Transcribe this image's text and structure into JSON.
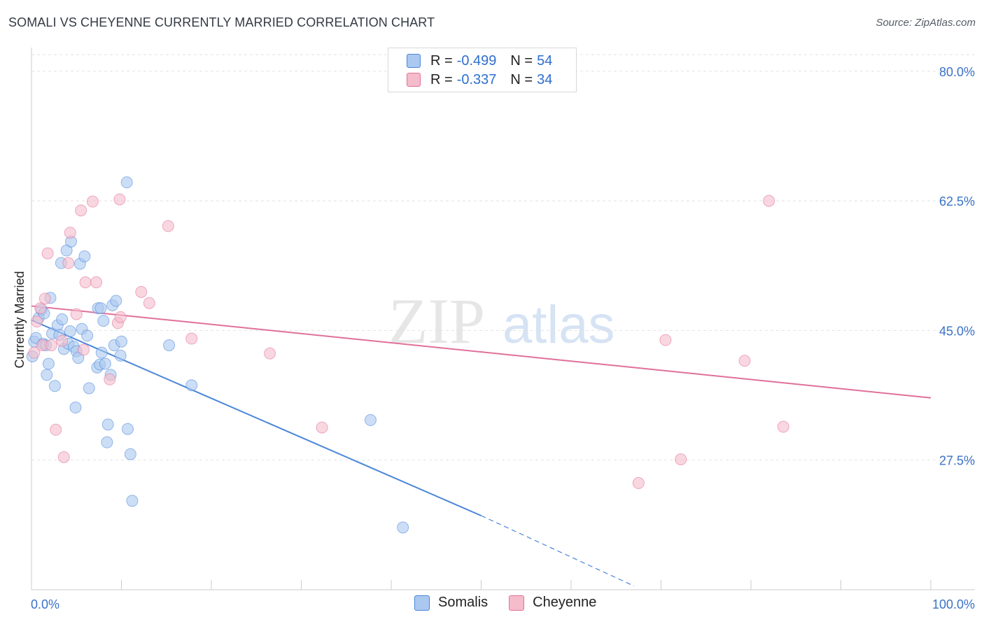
{
  "header": {
    "title": "SOMALI VS CHEYENNE CURRENTLY MARRIED CORRELATION CHART",
    "source": "Source: ZipAtlas.com"
  },
  "watermark": {
    "zip": "ZIP",
    "atlas": "atlas"
  },
  "legend": {
    "rows": [
      {
        "r_label": "R =",
        "r_value": "-0.499",
        "n_label": "N =",
        "n_value": "54",
        "color": "#aac8f0"
      },
      {
        "r_label": "R =",
        "r_value": "-0.337",
        "n_label": "N =",
        "n_value": "34",
        "color": "#f5bccb"
      }
    ],
    "bottom": [
      "Somalis",
      "Cheyenne"
    ]
  },
  "chart_data": {
    "type": "scatter",
    "title": "SOMALI VS CHEYENNE CURRENTLY MARRIED CORRELATION CHART",
    "xlabel": "",
    "ylabel": "Currently Married",
    "xlim": [
      0,
      100
    ],
    "ylim": [
      10,
      83
    ],
    "x_tick_labels": [
      "0.0%",
      "100.0%"
    ],
    "y_ticks": [
      27.5,
      45.0,
      62.5,
      80.0
    ],
    "y_tick_labels": [
      "27.5%",
      "45.0%",
      "62.5%",
      "80.0%"
    ],
    "grid": "horizontal-dashed",
    "legend_position": "top-center",
    "series": [
      {
        "name": "Somalis",
        "color": "#4a86d8",
        "fill": "#aac8f0",
        "r": "-0.499",
        "n": "54",
        "trend": {
          "x0": 0,
          "y0": 46.4,
          "x1": 50,
          "y1": 20.0,
          "dashed_to_x": 67,
          "dashed_to_y": 10.5
        },
        "points": [
          [
            0.1,
            41.5
          ],
          [
            0.3,
            43.5
          ],
          [
            0.5,
            44.0
          ],
          [
            0.8,
            46.7
          ],
          [
            1.1,
            47.8
          ],
          [
            1.3,
            43.2
          ],
          [
            1.4,
            47.3
          ],
          [
            1.6,
            43.0
          ],
          [
            1.9,
            40.5
          ],
          [
            1.7,
            39.0
          ],
          [
            2.1,
            49.4
          ],
          [
            2.3,
            44.6
          ],
          [
            2.6,
            37.5
          ],
          [
            2.9,
            45.7
          ],
          [
            3.1,
            44.4
          ],
          [
            3.3,
            54.1
          ],
          [
            3.4,
            46.5
          ],
          [
            3.6,
            42.5
          ],
          [
            3.9,
            55.8
          ],
          [
            4.1,
            43.2
          ],
          [
            4.3,
            44.9
          ],
          [
            4.4,
            57.0
          ],
          [
            4.7,
            42.8
          ],
          [
            4.9,
            34.6
          ],
          [
            5.0,
            42.2
          ],
          [
            5.2,
            41.3
          ],
          [
            5.4,
            54.0
          ],
          [
            5.6,
            45.2
          ],
          [
            5.9,
            55.0
          ],
          [
            6.2,
            44.3
          ],
          [
            6.4,
            37.2
          ],
          [
            7.3,
            40.0
          ],
          [
            7.4,
            48.0
          ],
          [
            7.6,
            40.4
          ],
          [
            7.7,
            48.0
          ],
          [
            7.8,
            42.0
          ],
          [
            8.0,
            46.3
          ],
          [
            8.2,
            40.5
          ],
          [
            8.4,
            29.9
          ],
          [
            8.5,
            32.3
          ],
          [
            8.8,
            39.0
          ],
          [
            9.0,
            48.4
          ],
          [
            9.2,
            43.0
          ],
          [
            9.4,
            49.0
          ],
          [
            9.9,
            41.6
          ],
          [
            10.0,
            43.5
          ],
          [
            10.7,
            31.7
          ],
          [
            11.0,
            28.3
          ],
          [
            11.2,
            22.0
          ],
          [
            10.6,
            65.0
          ],
          [
            15.3,
            43.0
          ],
          [
            17.8,
            37.6
          ],
          [
            37.7,
            32.9
          ],
          [
            41.3,
            18.4
          ]
        ]
      },
      {
        "name": "Cheyenne",
        "color": "#e0709a",
        "fill": "#f5bccb",
        "r": "-0.337",
        "n": "34",
        "trend": {
          "x0": 0,
          "y0": 48.3,
          "x1": 100,
          "y1": 35.9
        },
        "points": [
          [
            0.3,
            42.0
          ],
          [
            0.6,
            46.2
          ],
          [
            1.0,
            48.0
          ],
          [
            1.2,
            43.0
          ],
          [
            1.5,
            49.3
          ],
          [
            1.8,
            55.4
          ],
          [
            2.2,
            43.0
          ],
          [
            2.7,
            31.6
          ],
          [
            3.4,
            43.6
          ],
          [
            3.6,
            27.9
          ],
          [
            4.1,
            54.1
          ],
          [
            4.3,
            58.2
          ],
          [
            5.0,
            47.2
          ],
          [
            5.5,
            61.2
          ],
          [
            5.8,
            42.4
          ],
          [
            6.0,
            51.5
          ],
          [
            6.8,
            62.4
          ],
          [
            7.2,
            51.5
          ],
          [
            8.7,
            38.4
          ],
          [
            9.6,
            46.0
          ],
          [
            9.8,
            62.7
          ],
          [
            9.9,
            46.8
          ],
          [
            12.2,
            50.2
          ],
          [
            13.1,
            48.7
          ],
          [
            15.2,
            59.1
          ],
          [
            17.8,
            43.9
          ],
          [
            26.5,
            41.9
          ],
          [
            32.3,
            31.9
          ],
          [
            67.5,
            24.4
          ],
          [
            70.5,
            43.7
          ],
          [
            72.2,
            27.6
          ],
          [
            79.3,
            40.9
          ],
          [
            82.0,
            62.5
          ],
          [
            83.6,
            32.0
          ]
        ]
      }
    ]
  }
}
